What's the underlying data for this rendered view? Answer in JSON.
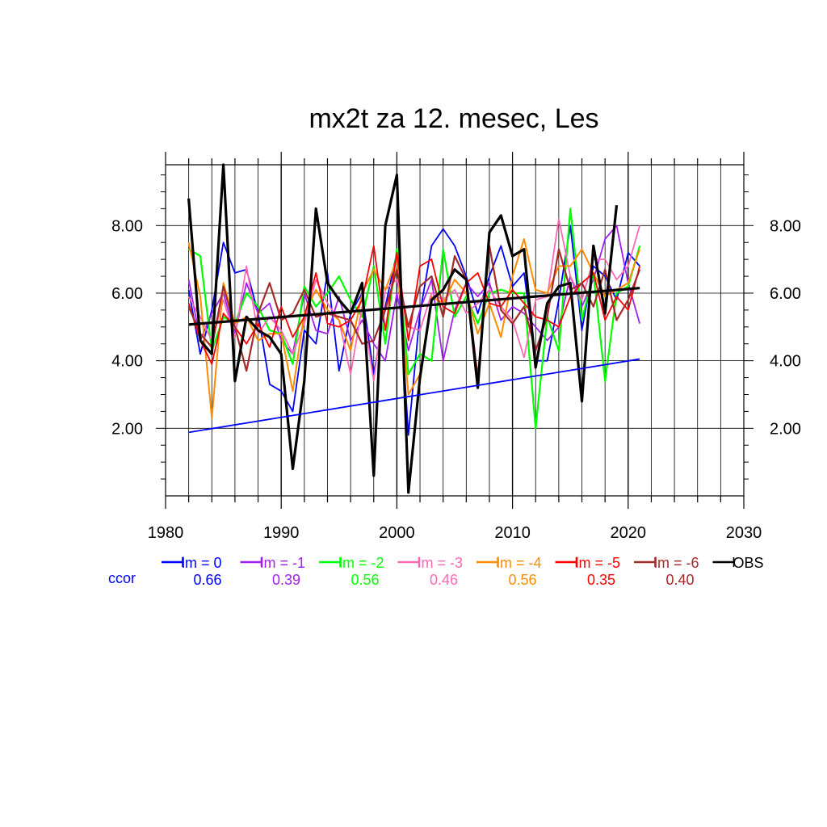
{
  "chart_data": {
    "type": "line",
    "title": "mx2t za 12. mesec, Les",
    "xlim": [
      1980,
      2030
    ],
    "ylim": [
      0,
      9.8
    ],
    "x_ticks": [
      "1980",
      "1990",
      "2000",
      "2010",
      "2020",
      "2030"
    ],
    "y_ticks": [
      "2.00",
      "4.00",
      "6.00",
      "8.00"
    ],
    "grid": true,
    "x": [
      1982,
      1983,
      1984,
      1985,
      1986,
      1987,
      1988,
      1989,
      1990,
      1991,
      1992,
      1993,
      1994,
      1995,
      1996,
      1997,
      1998,
      1999,
      2000,
      2001,
      2002,
      2003,
      2004,
      2005,
      2006,
      2007,
      2008,
      2009,
      2010,
      2011,
      2012,
      2013,
      2014,
      2015,
      2016,
      2017,
      2018,
      2019,
      2020,
      2021
    ],
    "series": [
      {
        "name": "lm = 0",
        "color": "#0000ff",
        "width": 1.8,
        "values": [
          6.1,
          4.2,
          5.5,
          7.5,
          6.6,
          6.7,
          5.4,
          3.3,
          3.1,
          2.5,
          4.9,
          4.5,
          6.6,
          3.7,
          5.4,
          6.0,
          3.6,
          5.6,
          7.2,
          1.8,
          5.4,
          7.4,
          7.9,
          7.4,
          6.5,
          5.4,
          6.5,
          7.4,
          6.2,
          6.6,
          4.0,
          4.0,
          5.8,
          8.0,
          4.9,
          6.8,
          6.5,
          5.8,
          7.2,
          6.8
        ]
      },
      {
        "name": "lm = -1",
        "color": "#a020f0",
        "width": 1.8,
        "values": [
          6.4,
          4.6,
          5.4,
          6.0,
          4.8,
          6.3,
          5.4,
          5.7,
          4.6,
          4.2,
          6.0,
          4.9,
          4.8,
          5.9,
          4.6,
          5.2,
          4.5,
          4.0,
          6.0,
          4.3,
          5.5,
          6.4,
          4.0,
          5.5,
          6.3,
          5.9,
          6.3,
          5.2,
          5.6,
          5.4,
          5.0,
          4.6,
          5.0,
          6.5,
          5.6,
          6.4,
          7.6,
          8.0,
          6.3,
          5.1
        ]
      },
      {
        "name": "lm = -2",
        "color": "#00ff00",
        "width": 2.2,
        "values": [
          7.3,
          7.1,
          4.3,
          5.3,
          5.1,
          6.0,
          5.6,
          4.9,
          4.8,
          3.9,
          6.2,
          5.6,
          6.0,
          6.5,
          5.8,
          5.3,
          6.8,
          4.5,
          7.3,
          3.6,
          4.2,
          4.0,
          7.3,
          5.3,
          5.9,
          5.1,
          6.0,
          6.1,
          6.0,
          6.0,
          2.0,
          5.3,
          4.3,
          8.5,
          5.2,
          6.6,
          3.4,
          6.0,
          6.2,
          7.4
        ]
      },
      {
        "name": "lm = -3",
        "color": "#ff69b4",
        "width": 1.8,
        "values": [
          5.9,
          5.3,
          4.6,
          5.8,
          4.7,
          6.8,
          4.8,
          5.3,
          4.9,
          4.2,
          5.1,
          6.4,
          5.7,
          5.2,
          3.6,
          5.6,
          3.4,
          6.1,
          6.4,
          5.0,
          4.9,
          6.0,
          5.8,
          6.1,
          5.4,
          5.7,
          6.1,
          5.6,
          5.2,
          4.1,
          5.8,
          5.9,
          8.2,
          6.5,
          5.8,
          7.0,
          7.0,
          6.4,
          6.8,
          8.0
        ]
      },
      {
        "name": "lm = -4",
        "color": "#ff8c00",
        "width": 2.0,
        "values": [
          7.5,
          5.9,
          2.3,
          6.3,
          5.1,
          5.3,
          4.6,
          4.8,
          4.8,
          3.1,
          5.4,
          6.1,
          5.5,
          5.2,
          4.3,
          6.0,
          6.7,
          6.1,
          7.0,
          3.0,
          3.6,
          5.9,
          5.7,
          6.4,
          6.0,
          4.8,
          5.7,
          4.7,
          6.5,
          7.6,
          6.1,
          6.0,
          6.8,
          6.8,
          7.3,
          6.6,
          5.9,
          6.1,
          6.3,
          7.3
        ]
      },
      {
        "name": "lm = -5",
        "color": "#ff0000",
        "width": 1.8,
        "values": [
          5.7,
          4.6,
          3.9,
          5.4,
          5.0,
          4.5,
          5.1,
          4.4,
          5.6,
          4.7,
          5.3,
          6.6,
          5.1,
          5.0,
          5.2,
          5.8,
          7.4,
          4.9,
          7.2,
          4.6,
          6.8,
          7.0,
          5.6,
          5.4,
          6.3,
          6.6,
          5.7,
          5.6,
          6.1,
          5.7,
          5.3,
          5.2,
          5.0,
          5.9,
          6.3,
          6.6,
          5.2,
          5.9,
          5.5,
          6.8
        ]
      },
      {
        "name": "lm = -6",
        "color": "#a52a2a",
        "width": 2.2,
        "values": [
          5.6,
          4.8,
          4.4,
          6.2,
          5.0,
          3.7,
          5.4,
          6.3,
          5.2,
          5.4,
          6.1,
          5.3,
          5.4,
          5.3,
          5.2,
          4.5,
          4.6,
          5.5,
          6.7,
          5.0,
          6.2,
          6.5,
          5.3,
          7.1,
          6.4,
          3.5,
          7.4,
          5.5,
          5.1,
          5.6,
          4.3,
          5.3,
          7.3,
          6.1,
          6.3,
          5.6,
          6.7,
          5.2,
          5.8,
          6.7
        ]
      },
      {
        "name": "OBS",
        "color": "#000000",
        "width": 3.2,
        "values": [
          8.8,
          4.6,
          4.2,
          9.8,
          3.4,
          5.3,
          4.9,
          4.7,
          4.2,
          0.8,
          3.4,
          8.5,
          6.3,
          5.8,
          5.4,
          6.3,
          0.6,
          8.0,
          9.5,
          0.1,
          3.5,
          5.8,
          6.1,
          6.7,
          6.4,
          3.2,
          7.8,
          8.3,
          7.1,
          7.3,
          3.8,
          5.7,
          6.2,
          6.3,
          2.8,
          7.4,
          5.4,
          8.6,
          null,
          null
        ]
      }
    ],
    "trend_lines": [
      {
        "name": "obs-trend",
        "color": "#000000",
        "width": 3.2,
        "x": [
          1982,
          2021
        ],
        "y": [
          5.07,
          6.15
        ]
      },
      {
        "name": "lm0-trend",
        "color": "#0000ff",
        "width": 1.8,
        "x": [
          1982,
          2021
        ],
        "y": [
          1.88,
          4.05
        ]
      }
    ],
    "legend": {
      "placement": "bottom",
      "entries": [
        {
          "label": "lm = 0",
          "color": "#0000ff",
          "ccor": "0.66"
        },
        {
          "label": "lm = -1",
          "color": "#a020f0",
          "ccor": "0.39"
        },
        {
          "label": "lm = -2",
          "color": "#00ff00",
          "ccor": "0.56"
        },
        {
          "label": "lm = -3",
          "color": "#ff69b4",
          "ccor": "0.46"
        },
        {
          "label": "lm = -4",
          "color": "#ff8c00",
          "ccor": "0.56"
        },
        {
          "label": "lm = -5",
          "color": "#ff0000",
          "ccor": "0.35"
        },
        {
          "label": "lm = -6",
          "color": "#a52a2a",
          "ccor": "0.40"
        },
        {
          "label": "OBS",
          "color": "#000000",
          "ccor": ""
        }
      ],
      "ccor_label": "ccor",
      "ccor_label_color": "#0000ff"
    }
  }
}
